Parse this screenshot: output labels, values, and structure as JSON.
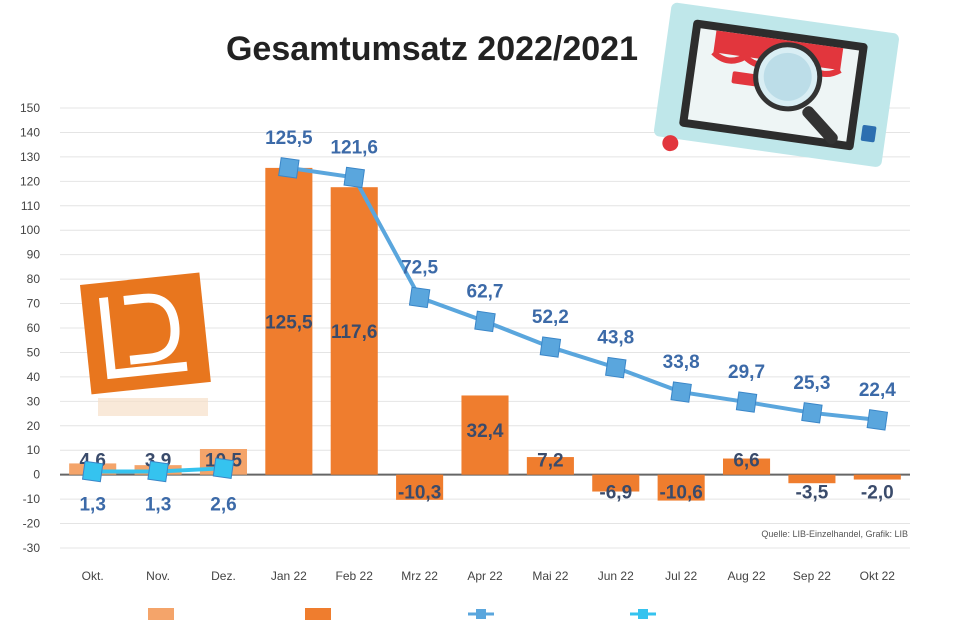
{
  "chart_data": {
    "type": "bar",
    "title": "Gesamtumsatz 2022/2021",
    "categories": [
      "Okt.",
      "Nov.",
      "Dez.",
      "Jan 22",
      "Feb 22",
      "Mrz 22",
      "Apr 22",
      "Mai 22",
      "Jun 22",
      "Jul 22",
      "Aug 22",
      "Sep 22",
      "Okt 22"
    ],
    "ylim": [
      -30,
      150
    ],
    "yticks": [
      150,
      140,
      130,
      120,
      110,
      100,
      90,
      80,
      70,
      60,
      50,
      40,
      30,
      20,
      10,
      0,
      -10,
      -20,
      -30
    ],
    "grid": true,
    "legend_position": "bottom",
    "series": [
      {
        "kind": "bar",
        "values": [
          4.6,
          3.9,
          10.5,
          null,
          null,
          null,
          null,
          null,
          null,
          null,
          null,
          null,
          null
        ],
        "labels": [
          "4,6",
          "3,9",
          "10,5",
          "",
          "",
          "",
          "",
          "",
          "",
          "",
          "",
          "",
          ""
        ],
        "color": "#f4a46a"
      },
      {
        "kind": "bar",
        "values": [
          null,
          null,
          null,
          125.5,
          117.6,
          -10.3,
          32.4,
          7.2,
          -6.9,
          -10.6,
          6.6,
          -3.5,
          -2.0
        ],
        "labels": [
          "",
          "",
          "",
          "125,5",
          "117,6",
          "-10,3",
          "32,4",
          "7,2",
          "-6,9",
          "-10,6",
          "6,6",
          "-3,5",
          "-2,0"
        ],
        "color": "#ef7d2e"
      },
      {
        "kind": "line",
        "values": [
          null,
          null,
          null,
          125.5,
          121.6,
          72.5,
          62.7,
          52.2,
          43.8,
          33.8,
          29.7,
          25.3,
          22.4
        ],
        "labels": [
          "",
          "",
          "",
          "125,5",
          "121,6",
          "72,5",
          "62,7",
          "52,2",
          "43,8",
          "33,8",
          "29,7",
          "25,3",
          "22,4"
        ],
        "color": "#5aa6dd"
      },
      {
        "kind": "line",
        "values": [
          1.3,
          1.3,
          2.6,
          null,
          null,
          null,
          null,
          null,
          null,
          null,
          null,
          null,
          null
        ],
        "labels": [
          "1,3",
          "1,3",
          "2,6",
          "",
          "",
          "",
          "",
          "",
          "",
          "",
          "",
          "",
          ""
        ],
        "color": "#35c3ef"
      }
    ]
  },
  "colors": {
    "grid": "#e4e4e4",
    "zero_line": "#666666",
    "logo": "#e8761e"
  },
  "icons": [
    "logo-icon",
    "magnifier-store-icon"
  ]
}
